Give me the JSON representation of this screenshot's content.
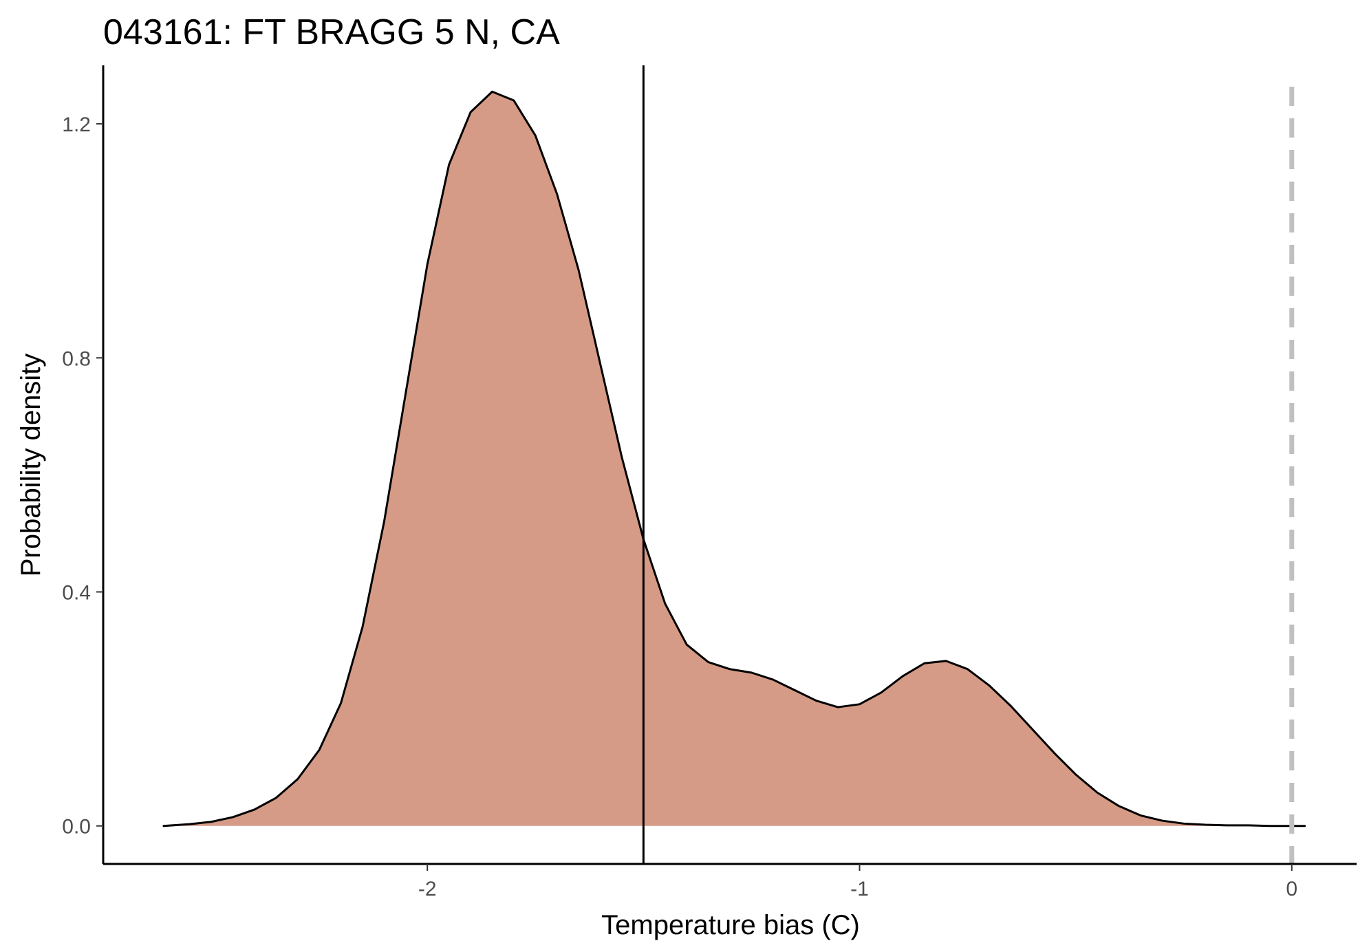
{
  "chart_data": {
    "type": "area",
    "title": "043161: FT BRAGG 5 N, CA",
    "xlabel": "Temperature bias (C)",
    "ylabel": "Probability density",
    "xlim": [
      -2.75,
      0.15
    ],
    "ylim": [
      -0.065,
      1.3
    ],
    "x_ticks": [
      -2,
      -1,
      0
    ],
    "x_tick_labels": [
      "-2",
      "-1",
      "0"
    ],
    "y_ticks": [
      0.0,
      0.4,
      0.8,
      1.2
    ],
    "y_tick_labels": [
      "0.0",
      "0.4",
      "0.8",
      "1.2"
    ],
    "grid": false,
    "legend": "none",
    "fill_color": "#d59b87",
    "line_color": "#000000",
    "series": [
      {
        "x": [
          -2.61,
          -2.55,
          -2.5,
          -2.45,
          -2.4,
          -2.35,
          -2.3,
          -2.25,
          -2.2,
          -2.15,
          -2.1,
          -2.05,
          -2.0,
          -1.95,
          -1.9,
          -1.85,
          -1.8,
          -1.75,
          -1.7,
          -1.65,
          -1.6,
          -1.55,
          -1.5,
          -1.45,
          -1.4,
          -1.35,
          -1.3,
          -1.25,
          -1.2,
          -1.15,
          -1.1,
          -1.05,
          -1.0,
          -0.95,
          -0.9,
          -0.85,
          -0.8,
          -0.75,
          -0.7,
          -0.65,
          -0.6,
          -0.55,
          -0.5,
          -0.45,
          -0.4,
          -0.35,
          -0.3,
          -0.25,
          -0.2,
          -0.15,
          -0.1,
          -0.05,
          0.0,
          0.03
        ],
        "y": [
          0.0,
          0.003,
          0.007,
          0.015,
          0.028,
          0.048,
          0.08,
          0.13,
          0.21,
          0.34,
          0.52,
          0.74,
          0.96,
          1.13,
          1.22,
          1.255,
          1.24,
          1.18,
          1.08,
          0.95,
          0.79,
          0.63,
          0.49,
          0.38,
          0.31,
          0.28,
          0.268,
          0.262,
          0.25,
          0.232,
          0.214,
          0.203,
          0.208,
          0.228,
          0.256,
          0.278,
          0.282,
          0.268,
          0.24,
          0.205,
          0.165,
          0.125,
          0.088,
          0.057,
          0.034,
          0.018,
          0.009,
          0.004,
          0.002,
          0.001,
          0.001,
          0.0,
          0.0,
          0.0
        ]
      }
    ],
    "reference_lines": [
      {
        "x": -1.5,
        "style": "solid",
        "color": "#000000"
      },
      {
        "x": 0.0,
        "style": "dashed",
        "color": "#c0c0c0"
      }
    ]
  }
}
